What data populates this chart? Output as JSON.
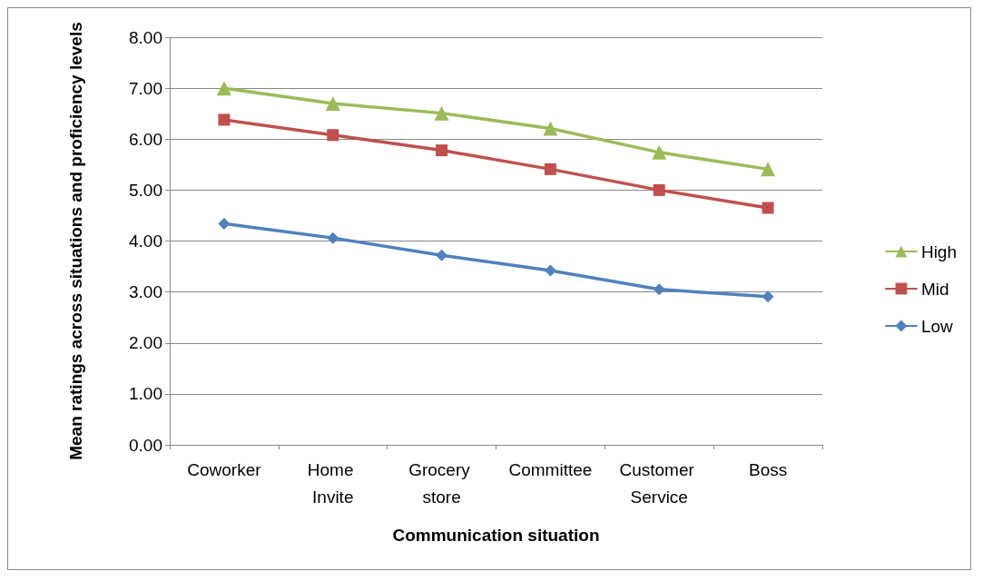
{
  "chart_data": {
    "type": "line",
    "xlabel": "Communication situation",
    "ylabel": "Mean ratings across situations and proficiency levels",
    "categories": [
      "Coworker",
      "Home Invite",
      "Grocery store",
      "Committee",
      "Customer Service",
      "Boss"
    ],
    "series": [
      {
        "name": "High",
        "color": "#9bbb59",
        "marker": "triangle",
        "values": [
          7.0,
          6.7,
          6.51,
          6.21,
          5.74,
          5.41
        ]
      },
      {
        "name": "Mid",
        "color": "#c0504d",
        "marker": "square",
        "values": [
          6.38,
          6.08,
          5.78,
          5.41,
          5.0,
          4.65
        ]
      },
      {
        "name": "Low",
        "color": "#4f81bd",
        "marker": "diamond",
        "values": [
          4.34,
          4.06,
          3.72,
          3.42,
          3.05,
          2.91
        ]
      }
    ],
    "ylim": [
      0,
      8
    ],
    "yticks": [
      {
        "value": 0,
        "label": "0.00"
      },
      {
        "value": 1,
        "label": "1.00"
      },
      {
        "value": 2,
        "label": "2.00"
      },
      {
        "value": 3,
        "label": "3.00"
      },
      {
        "value": 4,
        "label": "4.00"
      },
      {
        "value": 5,
        "label": "5.00"
      },
      {
        "value": 6,
        "label": "6.00"
      },
      {
        "value": 7,
        "label": "7.00"
      },
      {
        "value": 8,
        "label": "8.00"
      }
    ],
    "grid": "y",
    "legend": "right"
  }
}
